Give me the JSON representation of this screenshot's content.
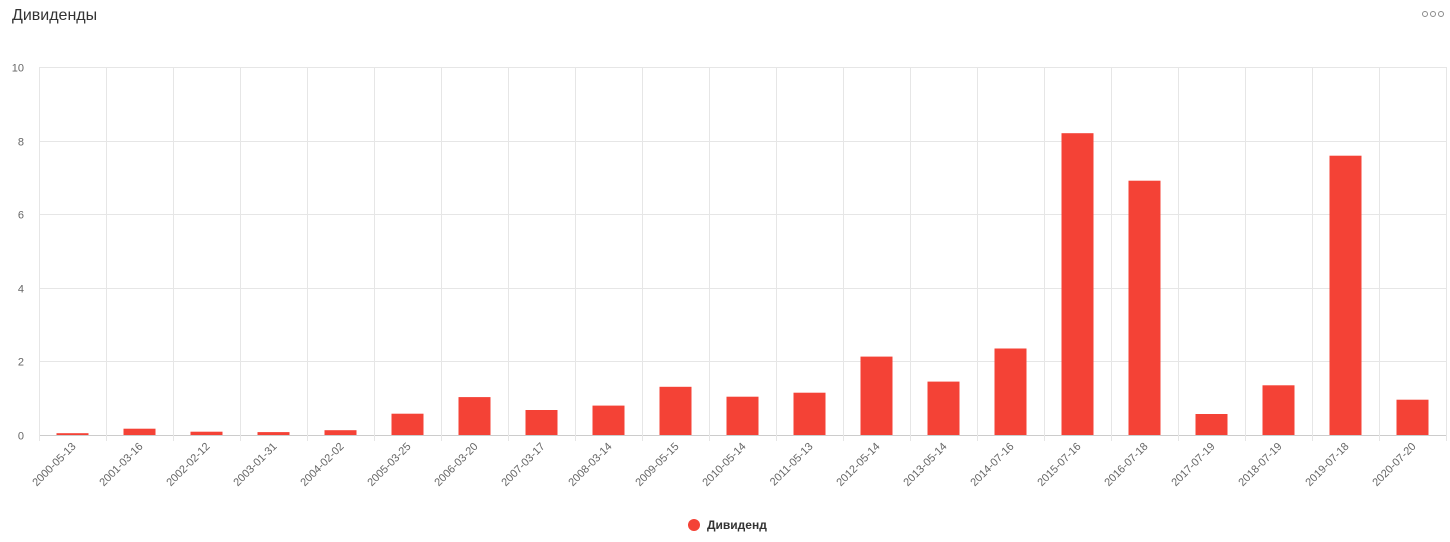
{
  "header": {
    "title": "Дивиденды",
    "menu_icon": "more-horizontal-icon"
  },
  "colors": {
    "bar": "#f44236",
    "grid": "#e6e6e6",
    "axis_text": "#666666"
  },
  "chart_data": {
    "type": "bar",
    "title": "Дивиденды",
    "xlabel": "",
    "ylabel": "",
    "ylim": [
      0,
      10
    ],
    "yticks": [
      0,
      2,
      4,
      6,
      8,
      10
    ],
    "grid": true,
    "legend_position": "bottom-center",
    "categories": [
      "2000-05-13",
      "2001-03-16",
      "2002-02-12",
      "2003-01-31",
      "2004-02-02",
      "2005-03-25",
      "2006-03-20",
      "2007-03-17",
      "2008-03-14",
      "2009-05-15",
      "2010-05-14",
      "2011-05-13",
      "2012-05-14",
      "2013-05-14",
      "2014-07-16",
      "2015-07-16",
      "2016-07-18",
      "2017-07-19",
      "2018-07-19",
      "2019-07-18",
      "2020-07-20"
    ],
    "series": [
      {
        "name": "Дивиденд",
        "color": "#f44236",
        "values": [
          0.05,
          0.17,
          0.09,
          0.08,
          0.13,
          0.58,
          1.03,
          0.68,
          0.8,
          1.31,
          1.04,
          1.15,
          2.13,
          1.45,
          2.35,
          8.2,
          6.91,
          0.57,
          1.35,
          7.59,
          0.96
        ]
      }
    ]
  }
}
